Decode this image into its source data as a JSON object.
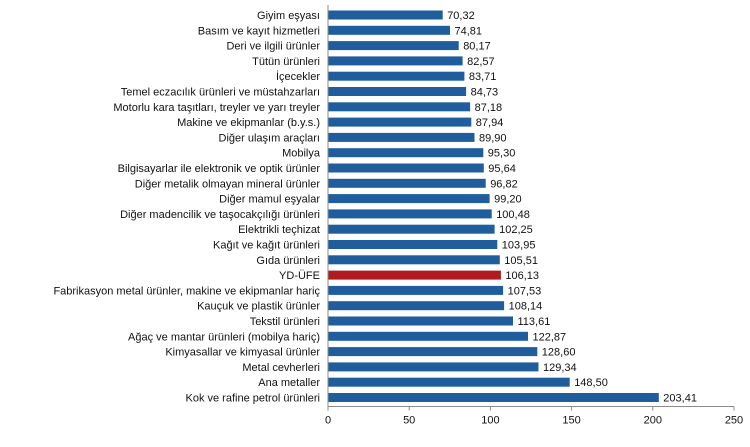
{
  "chart_data": {
    "type": "bar",
    "orientation": "horizontal",
    "categories": [
      "Giyim eşyası",
      "Basım ve kayıt hizmetleri",
      "Deri ve ilgili ürünler",
      "Tütün ürünleri",
      "İçecekler",
      "Temel eczacılık ürünleri ve müstahzarları",
      "Motorlu kara taşıtları, treyler ve yarı treyler",
      "Makine ve ekipmanlar (b.y.s.)",
      "Diğer ulaşım araçları",
      "Mobilya",
      "Bilgisayarlar ile elektronik ve optik ürünler",
      "Diğer metalik olmayan mineral ürünler",
      "Diğer mamul eşyalar",
      "Diğer madencilik ve taşocakçılığı ürünleri",
      "Elektrikli teçhizat",
      "Kağıt ve kağıt ürünleri",
      "Gıda ürünleri",
      "YD-ÜFE",
      "Fabrikasyon metal ürünler, makine ve ekipmanlar hariç",
      "Kauçuk ve plastik ürünler",
      "Tekstil ürünleri",
      "Ağaç ve mantar ürünleri (mobilya hariç)",
      "Kimyasallar ve kimyasal ürünler",
      "Metal cevherleri",
      "Ana metaller",
      "Kok ve rafine petrol ürünleri"
    ],
    "values": [
      70.32,
      74.81,
      80.17,
      82.57,
      83.71,
      84.73,
      87.18,
      87.94,
      89.9,
      95.3,
      95.64,
      96.82,
      99.2,
      100.48,
      102.25,
      103.95,
      105.51,
      106.13,
      107.53,
      108.14,
      113.61,
      122.87,
      128.6,
      129.34,
      148.5,
      203.41
    ],
    "value_labels": [
      "70,32",
      "74,81",
      "80,17",
      "82,57",
      "83,71",
      "84,73",
      "87,18",
      "87,94",
      "89,90",
      "95,30",
      "95,64",
      "96,82",
      "99,20",
      "100,48",
      "102,25",
      "103,95",
      "105,51",
      "106,13",
      "107,53",
      "108,14",
      "113,61",
      "122,87",
      "128,60",
      "129,34",
      "148,50",
      "203,41"
    ],
    "highlight_category": "YD-ÜFE",
    "xlim": [
      0,
      250
    ],
    "xticks": [
      0,
      50,
      100,
      150,
      200,
      250
    ],
    "xtick_labels": [
      "0",
      "50",
      "100",
      "150",
      "200",
      "250"
    ],
    "grid": false,
    "legend": "none",
    "title": "",
    "xlabel": "",
    "ylabel": ""
  },
  "colors": {
    "bar": "#1f5d9c",
    "highlight_bar": "#b11a1e",
    "axis": "#8c8c8c"
  }
}
